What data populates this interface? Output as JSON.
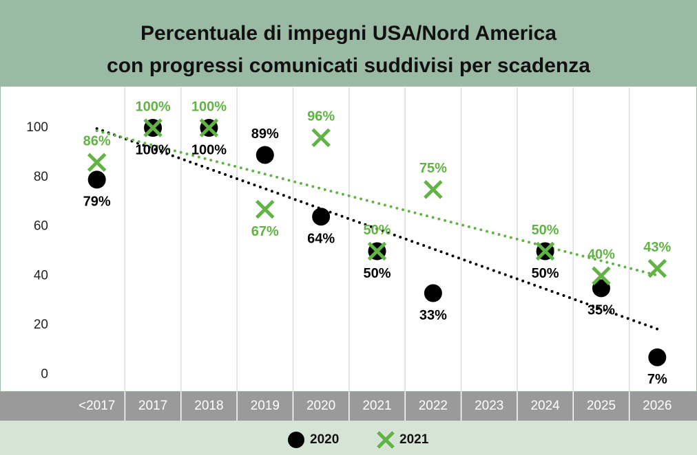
{
  "chart_data": {
    "type": "scatter",
    "title": [
      "Percentuale di impegni USA/Nord America",
      "con progressi comunicati suddivisi per scadenza"
    ],
    "categories": [
      "<2017",
      "2017",
      "2018",
      "2019",
      "2020",
      "2021",
      "2022",
      "2023",
      "2024",
      "2025",
      "2026"
    ],
    "series": [
      {
        "name": "2020",
        "color": "#000000",
        "marker": "circle",
        "values": [
          79,
          100,
          100,
          89,
          64,
          50,
          33,
          null,
          50,
          35,
          7
        ],
        "value_labels": [
          "79%",
          "100%",
          "100%",
          "89%",
          "64%",
          "50%",
          "33%",
          null,
          "50%",
          "35%",
          "7%"
        ]
      },
      {
        "name": "2021",
        "color": "#62b346",
        "marker": "x",
        "values": [
          86,
          100,
          100,
          67,
          96,
          50,
          75,
          null,
          50,
          40,
          43
        ],
        "value_labels": [
          "86%",
          "100%",
          "100%",
          "67%",
          "96%",
          "50%",
          "75%",
          null,
          "50%",
          "40%",
          "43%"
        ]
      }
    ],
    "ylim": [
      0,
      100
    ],
    "yticks": [
      0,
      20,
      40,
      60,
      80,
      100
    ],
    "trendline": true,
    "legend": "bottom"
  }
}
